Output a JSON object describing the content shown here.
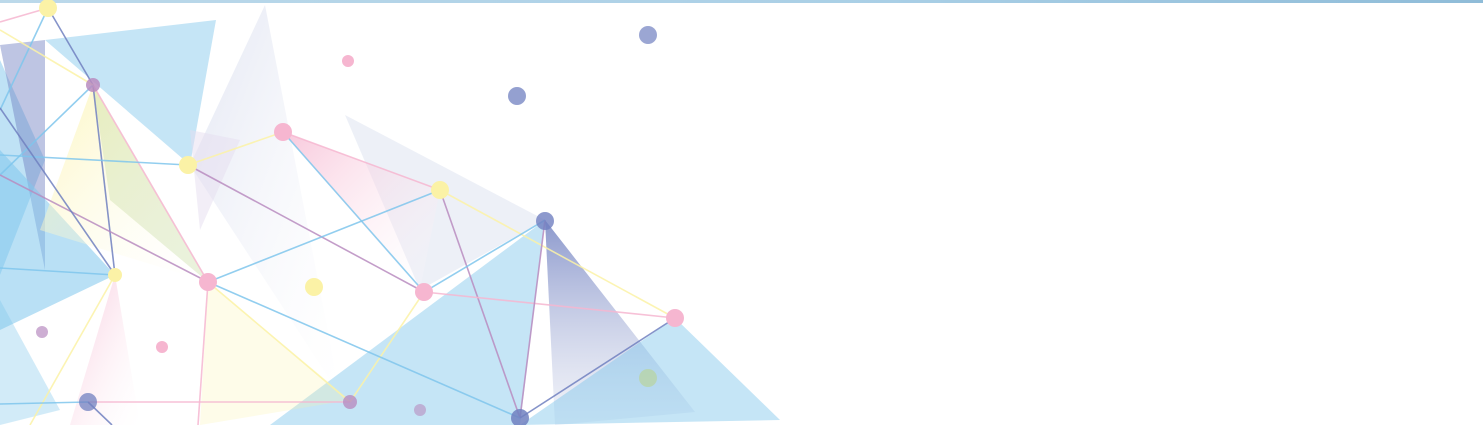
{
  "background": {
    "canvas_color": "#ffffff",
    "top_rule_color": "#a9cfe6"
  },
  "palette": {
    "blue": "#7fc6ec",
    "lavender": "#dfe3f1",
    "pink": "#f6b6d0",
    "yellow": "#fbf2a6",
    "navy": "#7080c0",
    "mauve": "#b88cc0",
    "green": "#b9d48f"
  }
}
